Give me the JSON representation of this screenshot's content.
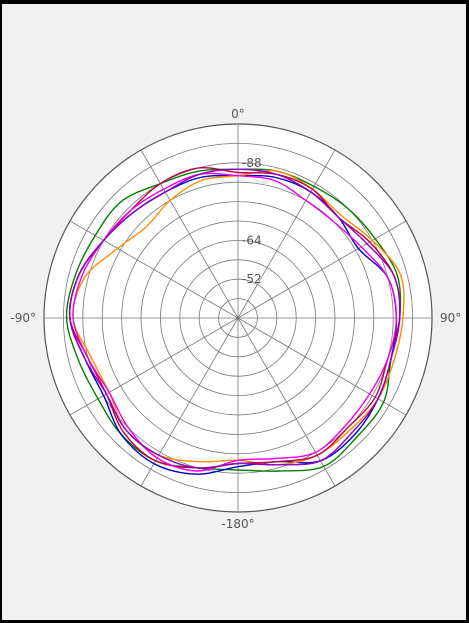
{
  "chart_data": {
    "type": "line",
    "subtype": "polar",
    "title": "",
    "angle_unit": "degrees",
    "angle_labels": [
      {
        "angle": 0,
        "text": "0°"
      },
      {
        "angle": 90,
        "text": "90°"
      },
      {
        "angle": 180,
        "text": "-180°"
      },
      {
        "angle": -90,
        "text": "-90°"
      }
    ],
    "radial_axis": {
      "range": [
        -40,
        -100
      ],
      "rings": [
        -40,
        -46,
        -52,
        -58,
        -64,
        -70,
        -76,
        -82,
        -88,
        -94,
        -100
      ],
      "tick_labels": [
        "-52",
        "-64",
        "-88"
      ]
    },
    "spokes_every_deg": 30,
    "grid": true,
    "legend": "none",
    "series": [
      {
        "color": "#008000",
        "angles": [
          -180,
          -165,
          -150,
          -135,
          -120,
          -105,
          -90,
          -75,
          -60,
          -45,
          -30,
          -15,
          0,
          15,
          30,
          45,
          60,
          75,
          90,
          105,
          120,
          135,
          150,
          165,
          180
        ],
        "values": [
          -87,
          -88,
          -91,
          -91,
          -90,
          -91,
          -93,
          -92,
          -91,
          -91,
          -88,
          -87,
          -86,
          -87,
          -87,
          -88,
          -89,
          -91,
          -90,
          -89,
          -92,
          -92,
          -93,
          -89,
          -87
        ]
      },
      {
        "color": "#0000c8",
        "angles": [
          -180,
          -165,
          -150,
          -135,
          -120,
          -105,
          -90,
          -75,
          -60,
          -45,
          -30,
          -15,
          0,
          15,
          30,
          45,
          60,
          75,
          90,
          105,
          120,
          135,
          150,
          165,
          180
        ],
        "values": [
          -86,
          -90,
          -92,
          -91,
          -88,
          -89,
          -92,
          -91,
          -88,
          -86,
          -85,
          -85,
          -84,
          -85,
          -85,
          -84,
          -83,
          -88,
          -89,
          -89,
          -90,
          -91,
          -91,
          -86,
          -86
        ]
      },
      {
        "color": "#ff8c00",
        "angles": [
          -180,
          -165,
          -150,
          -135,
          -120,
          -105,
          -90,
          -75,
          -60,
          -45,
          -30,
          -15,
          0,
          15,
          30,
          45,
          60,
          75,
          90,
          105,
          120,
          135,
          150,
          165,
          180
        ],
        "values": [
          -84,
          -86,
          -89,
          -89,
          -86,
          -87,
          -91,
          -89,
          -83,
          -80,
          -82,
          -84,
          -84,
          -87,
          -86,
          -85,
          -88,
          -92,
          -91,
          -90,
          -90,
          -89,
          -89,
          -87,
          -84
        ]
      },
      {
        "color": "#c00040",
        "angles": [
          -180,
          -165,
          -150,
          -135,
          -120,
          -105,
          -90,
          -75,
          -60,
          -45,
          -30,
          -15,
          0,
          15,
          30,
          45,
          60,
          75,
          90,
          105,
          120,
          135,
          150,
          165,
          180
        ],
        "values": [
          -85,
          -88,
          -91,
          -90,
          -87,
          -88,
          -92,
          -91,
          -88,
          -87,
          -88,
          -88,
          -85,
          -86,
          -86,
          -84,
          -87,
          -90,
          -90,
          -88,
          -89,
          -88,
          -89,
          -86,
          -85
        ]
      },
      {
        "color": "#ee00ee",
        "angles": [
          -180,
          -165,
          -150,
          -135,
          -120,
          -105,
          -90,
          -75,
          -60,
          -45,
          -30,
          -15,
          0,
          15,
          30,
          45,
          60,
          75,
          90,
          105,
          120,
          135,
          150,
          165,
          180
        ],
        "values": [
          -84,
          -89,
          -90,
          -88,
          -86,
          -88,
          -91,
          -90,
          -88,
          -87,
          -86,
          -86,
          -84,
          -84,
          -82,
          -82,
          -84,
          -88,
          -89,
          -88,
          -87,
          -87,
          -88,
          -85,
          -84
        ]
      },
      {
        "color": "#9000c0",
        "angles": [
          -180,
          -165,
          -150,
          -135,
          -120,
          -105,
          -90,
          -75,
          -60,
          -45,
          -30,
          -15,
          0,
          15,
          30,
          45,
          60,
          75,
          90,
          105,
          120,
          135,
          150,
          165,
          180
        ],
        "values": [
          -85,
          -88,
          -89,
          -89,
          -87,
          -89,
          -92,
          -91,
          -88,
          -86,
          -85,
          -86,
          -86,
          -86,
          -85,
          -84,
          -86,
          -90,
          -90,
          -89,
          -90,
          -90,
          -91,
          -87,
          -85
        ]
      }
    ]
  }
}
